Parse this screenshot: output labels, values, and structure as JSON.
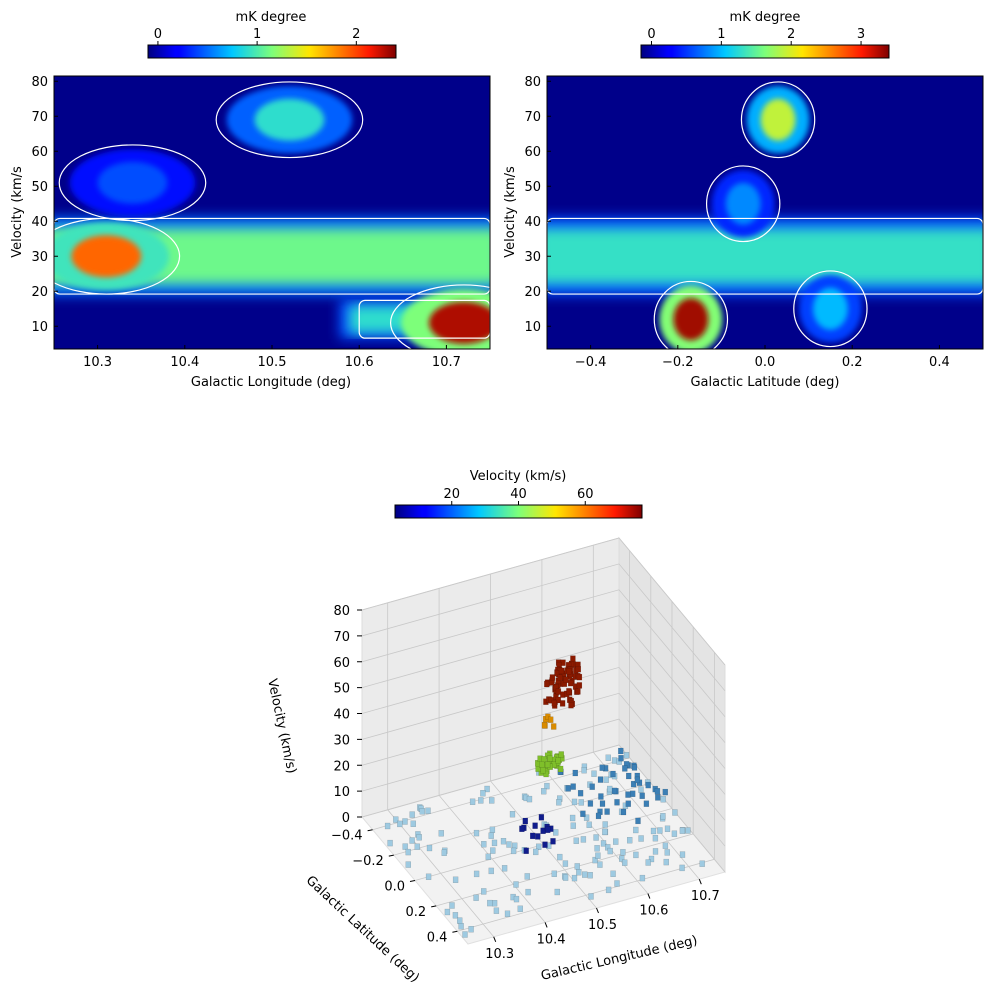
{
  "chart_data": [
    {
      "type": "heatmap",
      "name": "lv-diagram",
      "xlabel": "Galactic Longitude (deg)",
      "ylabel": "Velocity (km/s",
      "xlim": [
        10.25,
        10.75
      ],
      "ylim": [
        3.5,
        81.5
      ],
      "xticks": [
        10.3,
        10.4,
        10.5,
        10.6,
        10.7
      ],
      "xtick_labels": [
        "10.3",
        "10.4",
        "10.5",
        "10.6",
        "10.7"
      ],
      "yticks": [
        10,
        20,
        30,
        40,
        50,
        60,
        70,
        80
      ],
      "ytick_labels": [
        "10",
        "20",
        "30",
        "40",
        "50",
        "60",
        "70",
        "80"
      ],
      "colorbar": {
        "label": "mK degree",
        "range": [
          -0.1,
          2.4
        ],
        "ticks": [
          0,
          1,
          2
        ],
        "tick_labels": [
          "0",
          "1",
          "2"
        ],
        "colormap": "jet"
      },
      "contour_color": "#ffffff",
      "features": [
        {
          "kind": "band",
          "v_center": 30,
          "v_width": 8,
          "level": 1.1
        },
        {
          "kind": "band",
          "v_center": 12,
          "v_width": 4,
          "level": 0.9,
          "x_range": [
            10.6,
            10.75
          ]
        },
        {
          "kind": "blob",
          "x": 10.52,
          "v": 69,
          "level": 0.9
        },
        {
          "kind": "blob",
          "x": 10.72,
          "v": 11,
          "level": 2.3
        },
        {
          "kind": "blob",
          "x": 10.31,
          "v": 30,
          "level": 1.9
        },
        {
          "kind": "blob",
          "x": 10.34,
          "v": 51,
          "level": 0.4
        }
      ]
    },
    {
      "type": "heatmap",
      "name": "bv-diagram",
      "xlabel": "Galactic Latitude (deg)",
      "ylabel": "Velocity (km/s",
      "xlim": [
        -0.5,
        0.5
      ],
      "ylim": [
        3.5,
        81.5
      ],
      "xticks": [
        -0.4,
        -0.2,
        0.0,
        0.2,
        0.4
      ],
      "xtick_labels": [
        "−0.4",
        "−0.2",
        "0.0",
        "0.2",
        "0.4"
      ],
      "yticks": [
        10,
        20,
        30,
        40,
        50,
        60,
        70,
        80
      ],
      "ytick_labels": [
        "10",
        "20",
        "30",
        "40",
        "50",
        "60",
        "70",
        "80"
      ],
      "colorbar": {
        "label": "mK degree",
        "range": [
          -0.15,
          3.4
        ],
        "ticks": [
          0,
          1,
          2,
          3
        ],
        "tick_labels": [
          "0",
          "1",
          "2",
          "3"
        ],
        "colormap": "jet"
      },
      "contour_color": "#ffffff",
      "features": [
        {
          "kind": "band",
          "v_center": 30,
          "v_width": 8,
          "level": 1.3
        },
        {
          "kind": "blob",
          "x": 0.03,
          "v": 69,
          "level": 1.9
        },
        {
          "kind": "blob",
          "x": -0.17,
          "v": 12,
          "level": 3.3
        },
        {
          "kind": "blob",
          "x": 0.15,
          "v": 15,
          "level": 1.0
        },
        {
          "kind": "blob",
          "x": -0.05,
          "v": 45,
          "level": 0.8
        }
      ]
    },
    {
      "type": "scatter",
      "name": "3d-voxel-plot",
      "xlabel": "Galactic Longitude (deg)",
      "ylabel": "Galactic Latitude (deg)",
      "zlabel": "Velocity (km/s)",
      "xlim": [
        10.25,
        10.75
      ],
      "ylim": [
        -0.5,
        0.5
      ],
      "zlim": [
        0,
        80
      ],
      "xticks": [
        10.3,
        10.4,
        10.5,
        10.6,
        10.7
      ],
      "xtick_labels": [
        "10.3",
        "10.4",
        "10.5",
        "10.6",
        "10.7"
      ],
      "yticks": [
        -0.4,
        -0.2,
        0.0,
        0.2,
        0.4
      ],
      "ytick_labels": [
        "−0.4",
        "−0.2",
        "0.0",
        "0.2",
        "0.4"
      ],
      "zticks": [
        0,
        10,
        20,
        30,
        40,
        50,
        60,
        70,
        80
      ],
      "ztick_labels": [
        "0",
        "10",
        "20",
        "30",
        "40",
        "50",
        "60",
        "70",
        "80"
      ],
      "colorbar": {
        "label": "Velocity (km/s)",
        "range": [
          3,
          77
        ],
        "ticks": [
          20,
          40,
          60
        ],
        "tick_labels": [
          "20",
          "40",
          "60"
        ],
        "colormap": "jet"
      },
      "clouds": [
        {
          "x": [
            10.5,
            10.56
          ],
          "y": [
            0.0,
            0.08
          ],
          "z": [
            55,
            70
          ],
          "color": "#8b1a00",
          "count": 70
        },
        {
          "x": [
            10.5,
            10.52
          ],
          "y": [
            0.0,
            0.04
          ],
          "z": [
            46,
            50
          ],
          "color": "#d98b00",
          "count": 6
        },
        {
          "x": [
            10.48,
            10.53
          ],
          "y": [
            0.0,
            0.06
          ],
          "z": [
            28,
            36
          ],
          "color": "#7fbf2a",
          "count": 30
        },
        {
          "x": [
            10.44,
            10.5
          ],
          "y": [
            0.0,
            0.15
          ],
          "z": [
            5,
            14
          ],
          "color": "#101c8c",
          "count": 14
        },
        {
          "x": [
            10.25,
            10.75
          ],
          "y": [
            -0.45,
            0.45
          ],
          "z": [
            0,
            3
          ],
          "color": "#9ecae1",
          "count": 160
        },
        {
          "x": [
            10.58,
            10.72
          ],
          "y": [
            -0.25,
            0.15
          ],
          "z": [
            6,
            15
          ],
          "color": "#3b7fb5",
          "count": 45
        }
      ]
    }
  ]
}
